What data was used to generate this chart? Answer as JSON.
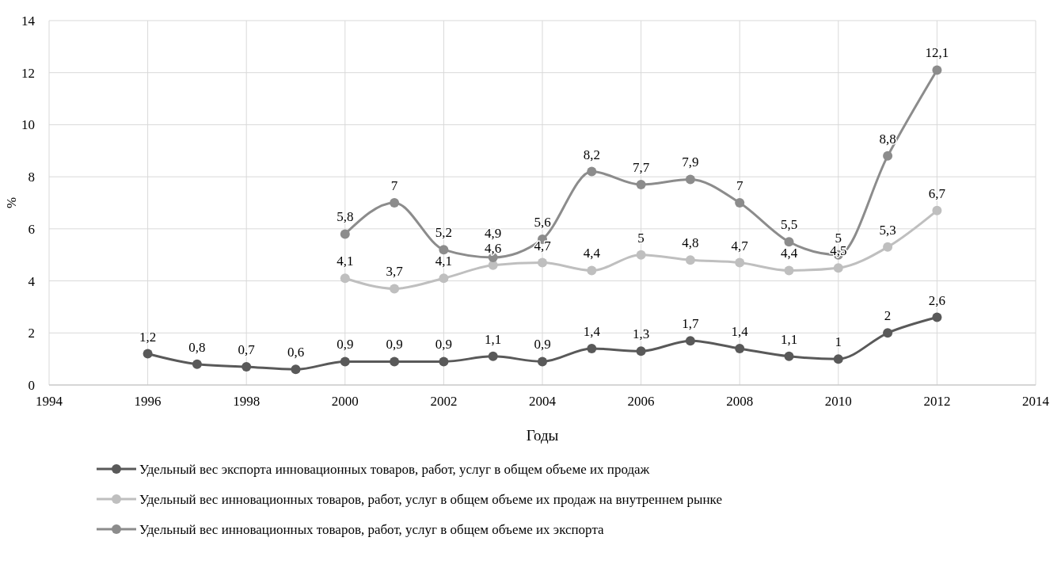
{
  "chart_data": {
    "type": "line",
    "xlabel": "Годы",
    "ylabel": "%",
    "xlim": [
      1994,
      2014
    ],
    "xticks": [
      1994,
      1996,
      1998,
      2000,
      2002,
      2004,
      2006,
      2008,
      2010,
      2012,
      2014
    ],
    "ylim": [
      0,
      14
    ],
    "yticks": [
      0,
      2,
      4,
      6,
      8,
      10,
      12,
      14
    ],
    "grid": true,
    "legend": "bottom",
    "marker": "circle",
    "line_style": "solid",
    "series": [
      {
        "name": "Удельный вес экспорта инновационных товаров, работ, услуг в общем объеме их продаж",
        "color": "#595959",
        "x": [
          1996,
          1997,
          1998,
          1999,
          2000,
          2001,
          2002,
          2003,
          2004,
          2005,
          2006,
          2007,
          2008,
          2009,
          2010,
          2011,
          2012
        ],
        "values": [
          1.2,
          0.8,
          0.7,
          0.6,
          0.9,
          0.9,
          0.9,
          1.1,
          0.9,
          1.4,
          1.3,
          1.7,
          1.4,
          1.1,
          1,
          2,
          2.6
        ],
        "value_labels": [
          "1,2",
          "0,8",
          "0,7",
          "0,6",
          "0,9",
          "0,9",
          "0,9",
          "1,1",
          "0,9",
          "1,4",
          "1,3",
          "1,7",
          "1,4",
          "1,1",
          "1",
          "2",
          "2,6"
        ]
      },
      {
        "name": "Удельный вес инновационных товаров, работ, услуг в общем объеме их продаж на внутреннем рынке",
        "color": "#bfbfbf",
        "x": [
          2000,
          2001,
          2002,
          2003,
          2004,
          2005,
          2006,
          2007,
          2008,
          2009,
          2010,
          2011,
          2012
        ],
        "values": [
          4.1,
          3.7,
          4.1,
          4.6,
          4.7,
          4.4,
          5,
          4.8,
          4.7,
          4.4,
          4.5,
          5.3,
          6.7
        ],
        "value_labels": [
          "4,1",
          "3,7",
          "4,1",
          "4,6",
          "4,7",
          "4,4",
          "5",
          "4,8",
          "4,7",
          "4,4",
          "4,5",
          "5,3",
          "6,7"
        ]
      },
      {
        "name": "Удельный вес инновационных товаров, работ, услуг в общем объеме их экспорта",
        "color": "#8c8c8c",
        "x": [
          2000,
          2001,
          2002,
          2003,
          2004,
          2005,
          2006,
          2007,
          2008,
          2009,
          2010,
          2011,
          2012
        ],
        "values": [
          5.8,
          7,
          5.2,
          4.9,
          5.6,
          8.2,
          7.7,
          7.9,
          7,
          5.5,
          5,
          8.8,
          12.1
        ],
        "value_labels": [
          "5,8",
          "7",
          "5,2",
          "4,9",
          "5,6",
          "8,2",
          "7,7",
          "7,9",
          "7",
          "5,5",
          "5",
          "8,8",
          "12,1"
        ]
      }
    ]
  }
}
